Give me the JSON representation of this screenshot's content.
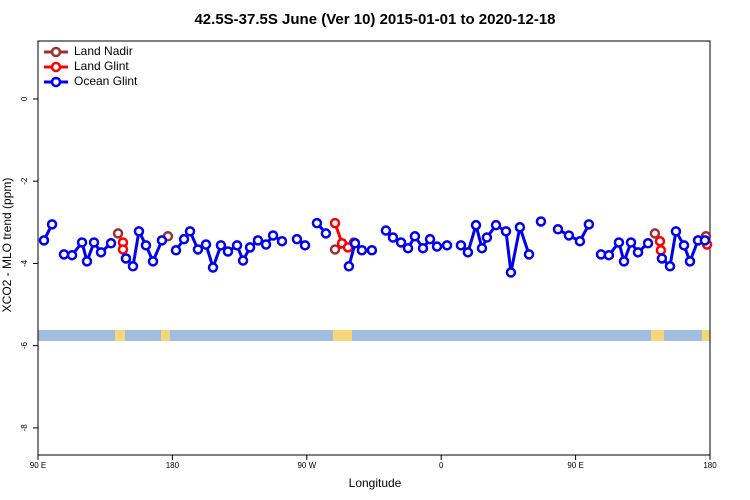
{
  "chart_data": {
    "type": "line",
    "title": "42.5S-37.5S June (Ver 10)   2015-01-01 to 2020-12-18",
    "x_label": "Longitude",
    "y_label": "XCO2 - MLO trend (ppm)",
    "xlim": [
      90,
      540
    ],
    "xticks": [
      {
        "value": 90,
        "label": "90 E"
      },
      {
        "value": 180,
        "label": "180"
      },
      {
        "value": 270,
        "label": "90 W"
      },
      {
        "value": 360,
        "label": "0"
      },
      {
        "value": 450,
        "label": "90 E"
      },
      {
        "value": 540,
        "label": "180"
      }
    ],
    "ylim": [
      -8.66,
      1.41
    ],
    "yticks": [
      0,
      -2,
      -4,
      -6,
      -8
    ],
    "legend": "top-left",
    "series": [
      {
        "name": "Land Nadir",
        "color": "#993333",
        "x": [
          143.6,
          null,
          177.0,
          null,
          288.9,
          301.6,
          null,
          503.1,
          null,
          537.3
        ],
        "values": [
          -3.27,
          null,
          -3.34,
          null,
          -3.66,
          -3.49,
          null,
          -3.27,
          null,
          -3.34
        ]
      },
      {
        "name": "Land Glint",
        "color": "#ff0000",
        "x": [
          146.9,
          146.9,
          null,
          288.9,
          293.6,
          297.6,
          null,
          506.5,
          507.1,
          null,
          538.0
        ],
        "values": [
          -3.49,
          -3.66,
          null,
          -3.02,
          -3.51,
          -3.61,
          null,
          -3.46,
          -3.68,
          null,
          -3.54
        ]
      },
      {
        "name": "Ocean Glint",
        "color": "#0000ee",
        "x": [
          94.0,
          99.4,
          null,
          107.4,
          112.8,
          119.5,
          122.8,
          127.5,
          132.2,
          138.9,
          null,
          148.9,
          153.6,
          157.6,
          162.3,
          167.0,
          173.0,
          null,
          182.4,
          187.8,
          191.8,
          197.1,
          202.5,
          207.2,
          212.5,
          217.2,
          223.3,
          227.3,
          232.0,
          237.3,
          242.7,
          247.4,
          253.4,
          null,
          263.4,
          268.8,
          null,
          276.8,
          282.8,
          null,
          298.2,
          302.3,
          306.9,
          313.6,
          null,
          323.0,
          327.7,
          333.1,
          337.8,
          342.4,
          347.8,
          352.5,
          357.2,
          363.9,
          null,
          373.2,
          377.9,
          383.3,
          387.3,
          390.6,
          396.7,
          403.4,
          406.7,
          412.7,
          418.8,
          null,
          426.8,
          null,
          438.2,
          445.5,
          452.9,
          458.9,
          null,
          467.0,
          472.3,
          479.0,
          482.4,
          487.1,
          491.8,
          498.5,
          null,
          507.8,
          513.2,
          517.2,
          522.6,
          526.6,
          532.0,
          536.6
        ],
        "values": [
          -3.44,
          -3.05,
          null,
          -3.78,
          -3.8,
          -3.49,
          -3.95,
          -3.49,
          -3.73,
          -3.51,
          null,
          -3.88,
          -4.07,
          -3.22,
          -3.56,
          -3.95,
          -3.44,
          null,
          -3.68,
          -3.41,
          -3.22,
          -3.66,
          -3.54,
          -4.1,
          -3.56,
          -3.71,
          -3.56,
          -3.93,
          -3.61,
          -3.44,
          -3.54,
          -3.32,
          -3.46,
          null,
          -3.41,
          -3.56,
          null,
          -3.02,
          -3.27,
          null,
          -4.07,
          -3.51,
          -3.68,
          -3.68,
          null,
          -3.2,
          -3.37,
          -3.49,
          -3.63,
          -3.34,
          -3.63,
          -3.41,
          -3.59,
          -3.56,
          null,
          -3.56,
          -3.73,
          -3.07,
          -3.63,
          -3.37,
          -3.07,
          -3.22,
          -4.22,
          -3.12,
          -3.78,
          null,
          -2.98,
          null,
          -3.17,
          -3.32,
          -3.46,
          -3.05,
          null,
          -3.78,
          -3.8,
          -3.49,
          -3.95,
          -3.49,
          -3.73,
          -3.51,
          null,
          -3.88,
          -4.07,
          -3.22,
          -3.56,
          -3.95,
          -3.44,
          -3.44
        ]
      }
    ]
  }
}
